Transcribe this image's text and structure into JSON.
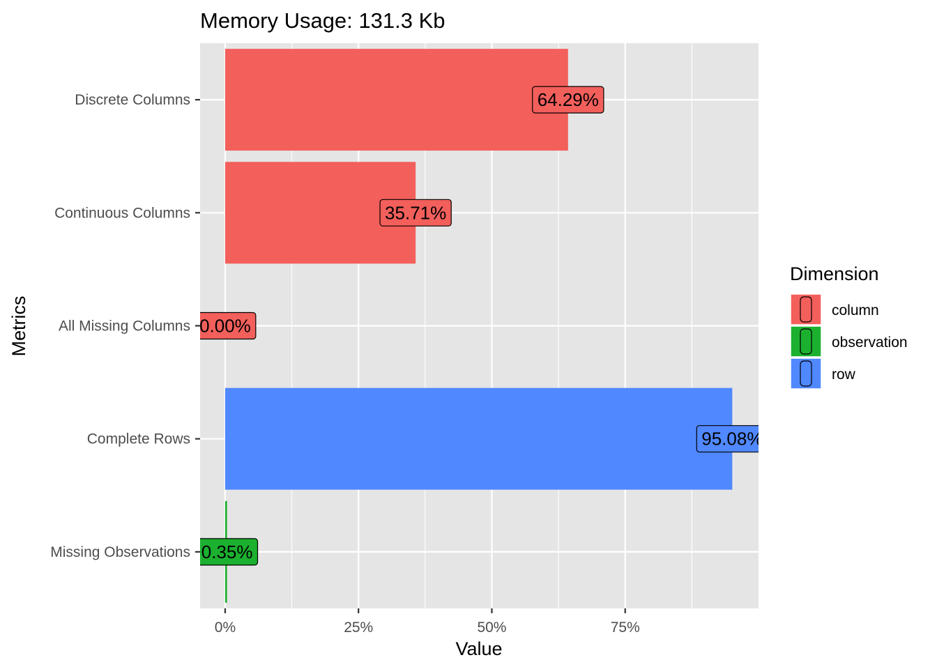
{
  "chart_data": {
    "type": "bar",
    "orientation": "horizontal",
    "title": "Memory Usage: 131.3 Kb",
    "xlabel": "Value",
    "ylabel": "Metrics",
    "categories": [
      "Discrete Columns",
      "Continuous Columns",
      "All Missing Columns",
      "Complete Rows",
      "Missing Observations"
    ],
    "values": [
      64.29,
      35.71,
      0.0,
      95.08,
      0.35
    ],
    "value_labels": [
      "64.29%",
      "35.71%",
      "0.00%",
      "95.08%",
      "0.35%"
    ],
    "dimension": [
      "column",
      "column",
      "column",
      "row",
      "observation"
    ],
    "xlim": [
      -4.7,
      100
    ],
    "x_ticks": [
      0,
      25,
      50,
      75
    ],
    "x_tick_labels": [
      "0%",
      "25%",
      "50%",
      "75%"
    ],
    "grid": true,
    "legend": {
      "title": "Dimension",
      "placement": "right",
      "entries": [
        {
          "label": "column",
          "color": "#F8766D"
        },
        {
          "label": "observation",
          "color": "#00BA38"
        },
        {
          "label": "row",
          "color": "#619CFF"
        }
      ]
    },
    "colors": {
      "column": "#F35F5B",
      "observation": "#1BB02F",
      "row": "#5088FF",
      "panel": "#E5E5E5",
      "grid": "#FFFFFF"
    }
  }
}
